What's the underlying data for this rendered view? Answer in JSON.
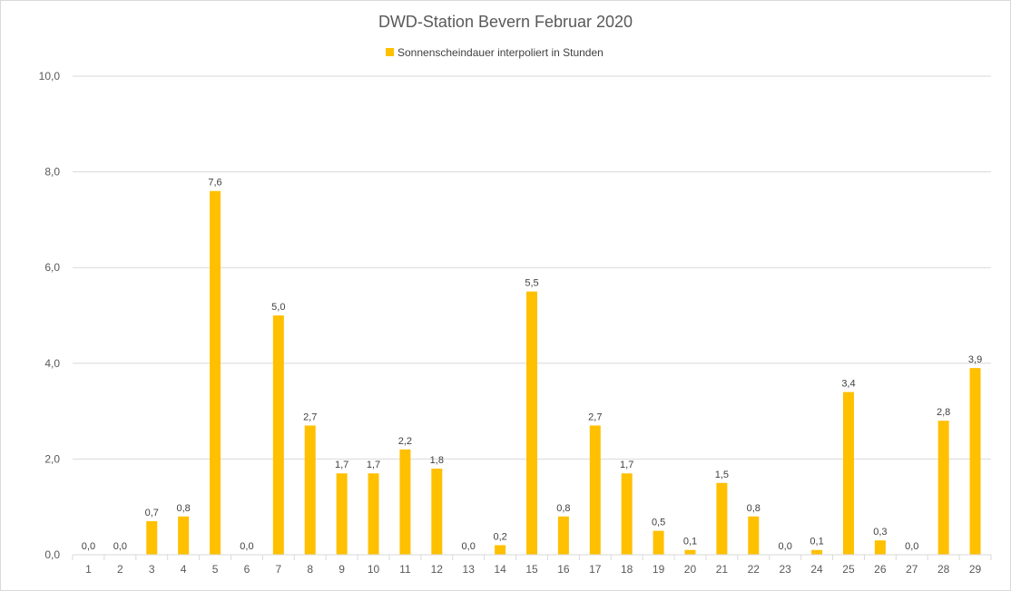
{
  "chart_data": {
    "type": "bar",
    "title": "DWD-Station Bevern Februar 2020",
    "legend_position": "top",
    "grid": true,
    "ylim": [
      0,
      10
    ],
    "yticks": [
      "0,0",
      "2,0",
      "4,0",
      "6,0",
      "8,0",
      "10,0"
    ],
    "ytick_values": [
      0,
      2,
      4,
      6,
      8,
      10
    ],
    "categories": [
      "1",
      "2",
      "3",
      "4",
      "5",
      "6",
      "7",
      "8",
      "9",
      "10",
      "11",
      "12",
      "13",
      "14",
      "15",
      "16",
      "17",
      "18",
      "19",
      "20",
      "21",
      "22",
      "23",
      "24",
      "25",
      "26",
      "27",
      "28",
      "29"
    ],
    "series": [
      {
        "name": "Sonnenscheindauer interpoliert in Stunden",
        "color": "#FFC000",
        "values": [
          0.0,
          0.0,
          0.7,
          0.8,
          7.6,
          0.0,
          5.0,
          2.7,
          1.7,
          1.7,
          2.2,
          1.8,
          0.0,
          0.2,
          5.5,
          0.8,
          2.7,
          1.7,
          0.5,
          0.1,
          1.5,
          0.8,
          0.0,
          0.1,
          3.4,
          0.3,
          0.0,
          2.8,
          3.9
        ],
        "labels": [
          "0,0",
          "0,0",
          "0,7",
          "0,8",
          "7,6",
          "0,0",
          "5,0",
          "2,7",
          "1,7",
          "1,7",
          "2,2",
          "1,8",
          "0,0",
          "0,2",
          "5,5",
          "0,8",
          "2,7",
          "1,7",
          "0,5",
          "0,1",
          "1,5",
          "0,8",
          "0,0",
          "0,1",
          "3,4",
          "0,3",
          "0,0",
          "2,8",
          "3,9"
        ]
      }
    ],
    "gridline_color": "#d9d9d9"
  }
}
